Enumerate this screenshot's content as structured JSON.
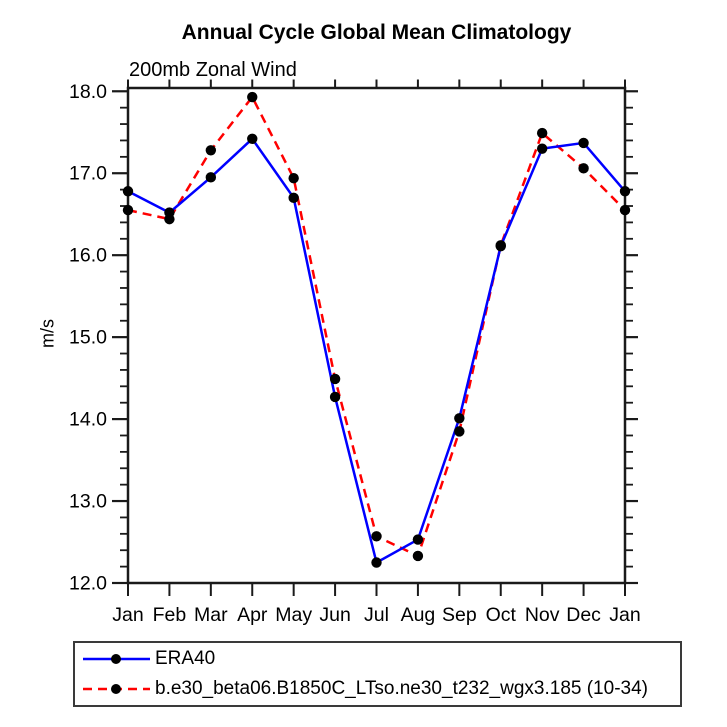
{
  "header": {
    "title": "Annual Cycle Global Mean Climatology",
    "subtitle": "200mb Zonal Wind"
  },
  "chart_data": {
    "type": "line",
    "title": "Annual Cycle Global Mean Climatology",
    "subtitle": "200mb Zonal Wind",
    "xlabel": "",
    "ylabel": "m/s",
    "categories": [
      "Jan",
      "Feb",
      "Mar",
      "Apr",
      "May",
      "Jun",
      "Jul",
      "Aug",
      "Sep",
      "Oct",
      "Nov",
      "Dec",
      "Jan"
    ],
    "series": [
      {
        "name": "ERA40",
        "color": "#0000ff",
        "line_style": "solid",
        "marker": "circle",
        "marker_color": "#000000",
        "values": [
          16.78,
          16.52,
          16.95,
          17.42,
          16.7,
          14.27,
          12.25,
          12.53,
          14.01,
          16.11,
          17.3,
          17.37,
          16.78
        ]
      },
      {
        "name": "b.e30_beta06.B1850C_LTso.ne30_t232_wgx3.185 (10-34)",
        "color": "#ff0000",
        "line_style": "dashed",
        "marker": "circle",
        "marker_color": "#000000",
        "values": [
          16.55,
          16.44,
          17.28,
          17.93,
          16.94,
          14.49,
          12.57,
          12.33,
          13.85,
          16.12,
          17.49,
          17.06,
          16.55
        ]
      }
    ],
    "ylim": [
      12.0,
      18.04
    ],
    "yticks": [
      12.0,
      13.0,
      14.0,
      15.0,
      16.0,
      17.0,
      18.0
    ],
    "ytick_labels": [
      "12.0",
      "13.0",
      "14.0",
      "15.0",
      "16.0",
      "17.0",
      "18.0"
    ],
    "y_minor_step": 0.2,
    "grid": false,
    "legend_position": "bottom-left",
    "frame_color": "#1a1a1a"
  }
}
